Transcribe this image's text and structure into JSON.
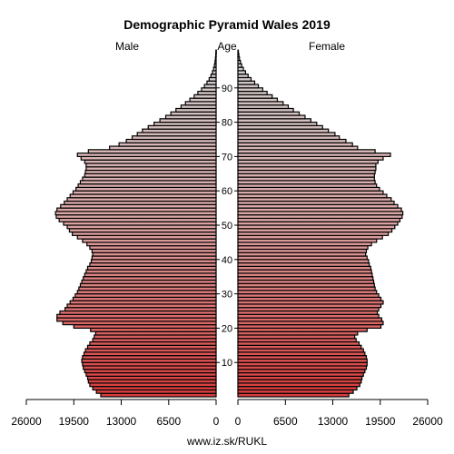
{
  "chart_data": {
    "type": "bar",
    "orientation": "horizontal-population-pyramid",
    "title": "Demographic Pyramid Wales 2019",
    "left_label": "Male",
    "center_label": "Age",
    "right_label": "Female",
    "source": "www.iz.sk/RUKL",
    "x_range": [
      0,
      26000
    ],
    "x_ticks_male": [
      "26000",
      "19500",
      "13000",
      "6500",
      "0"
    ],
    "x_ticks_female": [
      "0",
      "6500",
      "13000",
      "19500",
      "26000"
    ],
    "age_ticks": [
      "10",
      "20",
      "30",
      "40",
      "50",
      "60",
      "70",
      "80",
      "90"
    ],
    "age_tick_values": [
      10,
      20,
      30,
      40,
      50,
      60,
      70,
      80,
      90
    ],
    "ages": [
      0,
      1,
      2,
      3,
      4,
      5,
      6,
      7,
      8,
      9,
      10,
      11,
      12,
      13,
      14,
      15,
      16,
      17,
      18,
      19,
      20,
      21,
      22,
      23,
      24,
      25,
      26,
      27,
      28,
      29,
      30,
      31,
      32,
      33,
      34,
      35,
      36,
      37,
      38,
      39,
      40,
      41,
      42,
      43,
      44,
      45,
      46,
      47,
      48,
      49,
      50,
      51,
      52,
      53,
      54,
      55,
      56,
      57,
      57,
      59,
      60,
      61,
      62,
      63,
      64,
      65,
      66,
      67,
      68,
      69,
      70,
      71,
      72,
      73,
      74,
      75,
      76,
      77,
      78,
      79,
      80,
      81,
      82,
      83,
      84,
      85,
      86,
      87,
      88,
      89,
      90,
      91,
      92,
      93,
      94,
      95,
      96,
      97,
      98,
      99,
      100
    ],
    "series": [
      {
        "name": "Male",
        "color": "#d93b3b",
        "values": [
          15800,
          16400,
          16900,
          17300,
          17500,
          17600,
          17800,
          18000,
          18200,
          18300,
          18400,
          18300,
          18100,
          17900,
          17600,
          17300,
          16900,
          16700,
          16500,
          17200,
          19500,
          21000,
          21800,
          21800,
          21400,
          20700,
          20400,
          20000,
          19600,
          19300,
          19000,
          18800,
          18600,
          18400,
          18200,
          18000,
          17800,
          17600,
          17300,
          17100,
          17000,
          16900,
          17000,
          17300,
          17700,
          18300,
          19000,
          19700,
          20100,
          20400,
          20900,
          21500,
          21900,
          22000,
          21800,
          21300,
          20800,
          20400,
          20000,
          19600,
          19200,
          18900,
          18600,
          18300,
          18000,
          17900,
          17800,
          17800,
          18000,
          18500,
          19000,
          17500,
          14600,
          13300,
          12300,
          11500,
          10800,
          10100,
          9300,
          8500,
          7700,
          6900,
          6200,
          5500,
          4800,
          4200,
          3600,
          3000,
          2500,
          2000,
          1600,
          1250,
          950,
          700,
          500,
          350,
          230,
          150,
          90,
          50,
          30
        ]
      },
      {
        "name": "Female",
        "color": "#d93b3b",
        "values": [
          15200,
          15800,
          16300,
          16700,
          16900,
          17000,
          17200,
          17400,
          17600,
          17700,
          17700,
          17600,
          17400,
          17200,
          16900,
          16600,
          16200,
          16000,
          16400,
          17700,
          19600,
          19900,
          19700,
          19300,
          19100,
          19300,
          19600,
          19900,
          19600,
          19300,
          19000,
          18800,
          18700,
          18600,
          18500,
          18400,
          18300,
          18200,
          18000,
          17900,
          17700,
          17500,
          17600,
          17800,
          18300,
          19000,
          19800,
          20600,
          21100,
          21500,
          21900,
          22200,
          22500,
          22600,
          22400,
          21900,
          21400,
          21000,
          20400,
          19900,
          19400,
          19000,
          18800,
          18700,
          18700,
          18800,
          18900,
          18900,
          19200,
          19900,
          20900,
          18800,
          16400,
          15700,
          14800,
          13900,
          13300,
          12400,
          11600,
          10800,
          10000,
          9200,
          8400,
          7600,
          6900,
          6200,
          5400,
          4700,
          4000,
          3400,
          2800,
          2300,
          1800,
          1400,
          1050,
          750,
          520,
          350,
          220,
          130,
          70
        ]
      }
    ],
    "colors": {
      "bar_young": "#d93b3b",
      "bar_middle": "#dca3a3",
      "bar_old": "#c9c9c9",
      "outline": "#000000"
    }
  }
}
